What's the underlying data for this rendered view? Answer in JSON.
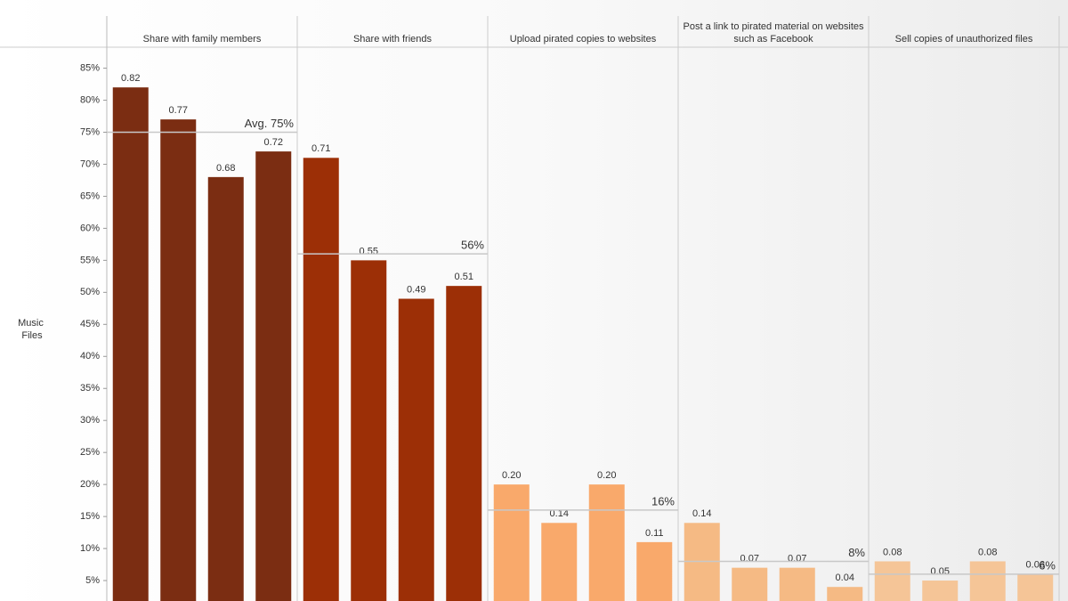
{
  "chart_data": {
    "type": "faceted-bar",
    "y_label": "Music Files",
    "ylim": [
      0,
      0.88
    ],
    "yticks": [
      {
        "value": 0.05,
        "label": "5%"
      },
      {
        "value": 0.1,
        "label": "10%"
      },
      {
        "value": 0.15,
        "label": "15%"
      },
      {
        "value": 0.2,
        "label": "20%"
      },
      {
        "value": 0.25,
        "label": "25%"
      },
      {
        "value": 0.3,
        "label": "30%"
      },
      {
        "value": 0.35,
        "label": "35%"
      },
      {
        "value": 0.4,
        "label": "40%"
      },
      {
        "value": 0.45,
        "label": "45%"
      },
      {
        "value": 0.5,
        "label": "50%"
      },
      {
        "value": 0.55,
        "label": "55%"
      },
      {
        "value": 0.6,
        "label": "60%"
      },
      {
        "value": 0.65,
        "label": "65%"
      },
      {
        "value": 0.7,
        "label": "70%"
      },
      {
        "value": 0.75,
        "label": "75%"
      },
      {
        "value": 0.8,
        "label": "80%"
      },
      {
        "value": 0.85,
        "label": "85%"
      }
    ],
    "panels": [
      {
        "name": "Share with family members",
        "color": "#7b2d12",
        "values": [
          0.82,
          0.77,
          0.68,
          0.72
        ],
        "average": {
          "value": 0.75,
          "label": "Avg. 75%"
        }
      },
      {
        "name": "Share with friends",
        "color": "#9c2f06",
        "values": [
          0.71,
          0.55,
          0.49,
          0.51
        ],
        "average": {
          "value": 0.56,
          "label": "56%"
        }
      },
      {
        "name": "Upload pirated copies to websites",
        "color": "#f9a96b",
        "values": [
          0.2,
          0.14,
          0.2,
          0.11
        ],
        "value_labels": [
          "0.20",
          "0.14",
          "0.20",
          "0.11"
        ],
        "average": {
          "value": 0.16,
          "label": "16%"
        }
      },
      {
        "name": "Post a link to pirated material on websites such as Facebook",
        "color": "#f5ba84",
        "values": [
          0.14,
          0.07,
          0.07,
          0.04
        ],
        "average": {
          "value": 0.08,
          "label": "8%"
        }
      },
      {
        "name": "Sell copies of unauthorized files",
        "color": "#f5c597",
        "values": [
          0.08,
          0.05,
          0.08,
          0.06
        ],
        "average": {
          "value": 0.06,
          "label": "6%"
        }
      }
    ]
  }
}
